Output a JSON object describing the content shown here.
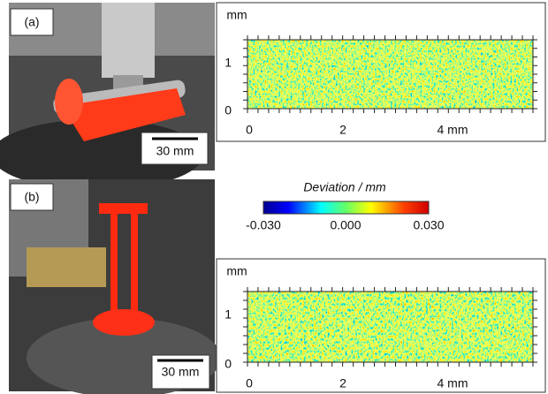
{
  "panels": [
    {
      "label": "(a)",
      "scale_bar": "30 mm",
      "map": {
        "unit": "mm",
        "yticks": [
          "0",
          "1"
        ],
        "xticks": [
          "0",
          "2",
          "4 mm"
        ]
      }
    },
    {
      "label": "(b)",
      "scale_bar": "30 mm",
      "map": {
        "unit": "mm",
        "yticks": [
          "0",
          "1"
        ],
        "xticks": [
          "0",
          "2",
          "4 mm"
        ]
      }
    }
  ],
  "colorbar": {
    "title": "Deviation / mm",
    "labels": [
      "-0.030",
      "0.000",
      "0.030"
    ]
  }
}
